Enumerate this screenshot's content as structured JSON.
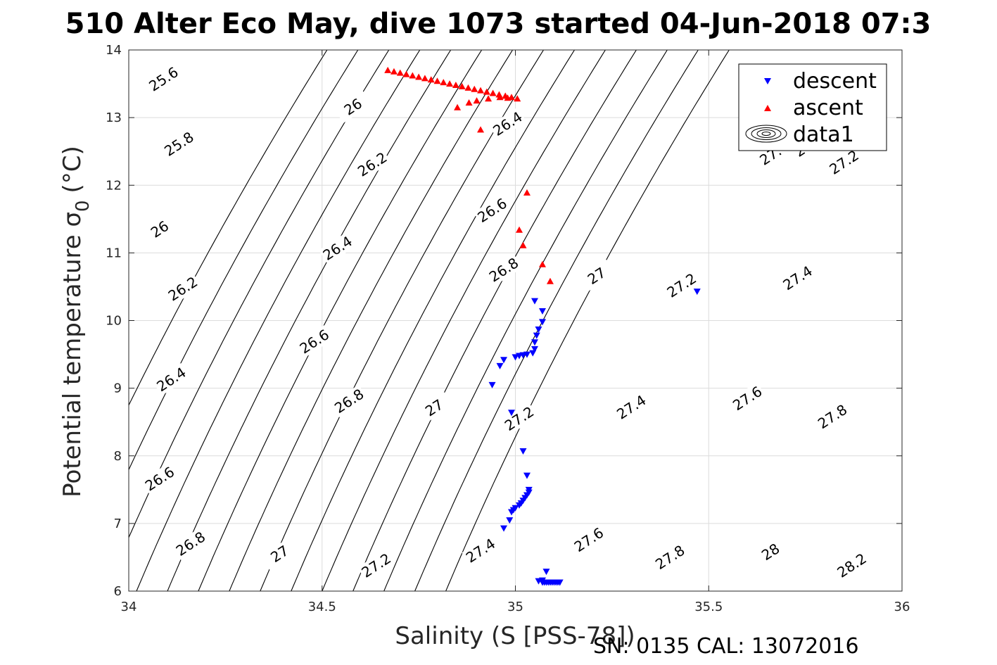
{
  "chart_data": {
    "type": "scatter",
    "title": "510 Alter Eco May, dive 1073 started 04-Jun-2018 07:3",
    "xlabel": "Salinity (S [PSS-78])",
    "ylabel": "Potential temperature σ 0 (°C)",
    "ylabel_main": "Potential temperature σ",
    "ylabel_sub": "0",
    "ylabel_unit": "(°C)",
    "xlim": [
      34,
      36
    ],
    "ylim": [
      6,
      14
    ],
    "x_ticks": [
      34,
      34.5,
      35,
      35.5,
      36
    ],
    "x_tick_labels": [
      "34",
      "34.5",
      "35",
      "35.5",
      "36"
    ],
    "y_ticks": [
      6,
      7,
      8,
      9,
      10,
      11,
      12,
      13,
      14
    ],
    "y_tick_labels": [
      "6",
      "7",
      "8",
      "9",
      "10",
      "11",
      "12",
      "13",
      "14"
    ],
    "grid": true,
    "legend_position": "top-right",
    "colors": {
      "descent": "#0000ff",
      "ascent": "#ff0000",
      "contour": "#000000",
      "grid": "#dcdcdc"
    },
    "series": [
      {
        "name": "descent",
        "marker": "triangle-down",
        "points": [
          [
            35.47,
            10.43
          ],
          [
            35.05,
            10.29
          ],
          [
            35.07,
            10.14
          ],
          [
            35.07,
            9.98
          ],
          [
            35.06,
            9.87
          ],
          [
            35.055,
            9.78
          ],
          [
            35.05,
            9.68
          ],
          [
            35.05,
            9.58
          ],
          [
            35.045,
            9.52
          ],
          [
            35.03,
            9.5
          ],
          [
            35.02,
            9.49
          ],
          [
            35.01,
            9.48
          ],
          [
            35.0,
            9.46
          ],
          [
            34.97,
            9.42
          ],
          [
            34.96,
            9.33
          ],
          [
            34.94,
            9.05
          ],
          [
            34.99,
            8.64
          ],
          [
            35.02,
            8.07
          ],
          [
            35.03,
            7.71
          ],
          [
            35.035,
            7.5
          ],
          [
            35.035,
            7.46
          ],
          [
            35.03,
            7.42
          ],
          [
            35.025,
            7.38
          ],
          [
            35.02,
            7.34
          ],
          [
            35.015,
            7.3
          ],
          [
            35.01,
            7.27
          ],
          [
            35.0,
            7.23
          ],
          [
            34.995,
            7.2
          ],
          [
            34.99,
            7.17
          ],
          [
            34.985,
            7.05
          ],
          [
            34.97,
            6.93
          ],
          [
            35.08,
            6.29
          ],
          [
            35.07,
            6.16
          ],
          [
            35.06,
            6.15
          ],
          [
            35.07,
            6.13
          ],
          [
            35.075,
            6.13
          ],
          [
            35.08,
            6.13
          ],
          [
            35.085,
            6.13
          ],
          [
            35.09,
            6.13
          ],
          [
            35.095,
            6.13
          ],
          [
            35.1,
            6.13
          ],
          [
            35.105,
            6.13
          ],
          [
            35.11,
            6.13
          ],
          [
            35.115,
            6.13
          ]
        ]
      },
      {
        "name": "ascent",
        "marker": "triangle-up",
        "points": [
          [
            34.67,
            13.7
          ],
          [
            34.686,
            13.68
          ],
          [
            34.702,
            13.66
          ],
          [
            34.718,
            13.64
          ],
          [
            34.734,
            13.62
          ],
          [
            34.75,
            13.6
          ],
          [
            34.766,
            13.58
          ],
          [
            34.782,
            13.56
          ],
          [
            34.798,
            13.54
          ],
          [
            34.814,
            13.52
          ],
          [
            34.83,
            13.5
          ],
          [
            34.846,
            13.48
          ],
          [
            34.862,
            13.46
          ],
          [
            34.878,
            13.44
          ],
          [
            34.894,
            13.42
          ],
          [
            34.91,
            13.4
          ],
          [
            34.926,
            13.38
          ],
          [
            34.942,
            13.36
          ],
          [
            34.958,
            13.34
          ],
          [
            34.974,
            13.32
          ],
          [
            34.99,
            13.3
          ],
          [
            35.005,
            13.28
          ],
          [
            34.85,
            13.15
          ],
          [
            34.88,
            13.22
          ],
          [
            34.9,
            13.25
          ],
          [
            34.93,
            13.28
          ],
          [
            34.96,
            13.3
          ],
          [
            34.98,
            13.29
          ],
          [
            34.91,
            12.82
          ],
          [
            35.03,
            11.89
          ],
          [
            35.01,
            11.34
          ],
          [
            35.02,
            11.11
          ],
          [
            35.07,
            10.83
          ],
          [
            35.09,
            10.58
          ]
        ]
      }
    ],
    "contour_series_name": "data1",
    "contours": [
      {
        "label": "25.6",
        "base": 33.78
      },
      {
        "label": "25.8",
        "base": 33.86
      },
      {
        "label": "26",
        "base": 33.94
      },
      {
        "label": "26.2",
        "base": 34.02
      },
      {
        "label": "26.4",
        "base": 34.1
      },
      {
        "label": "26.6",
        "base": 34.18
      },
      {
        "label": "26.8",
        "base": 34.26
      },
      {
        "label": "27",
        "base": 34.34
      },
      {
        "label": "27.2",
        "base": 34.42
      },
      {
        "label": "27.4",
        "base": 34.5
      },
      {
        "label": "27.6",
        "base": 34.58
      },
      {
        "label": "27.8",
        "base": 34.66
      },
      {
        "label": "28",
        "base": 34.74
      },
      {
        "label": "28.2",
        "base": 34.82
      }
    ],
    "contour_labels": [
      {
        "text": "25.6",
        "at": [
          34.09,
          13.57
        ]
      },
      {
        "text": "26",
        "at": [
          34.58,
          13.16
        ]
      },
      {
        "text": "26.4",
        "at": [
          34.98,
          12.91
        ]
      },
      {
        "text": "26.6",
        "at": [
          35.73,
          13.39
        ]
      },
      {
        "text": "25.8",
        "at": [
          34.13,
          12.61
        ]
      },
      {
        "text": "26.2",
        "at": [
          34.63,
          12.31
        ]
      },
      {
        "text": "26.8",
        "at": [
          35.76,
          12.6
        ]
      },
      {
        "text": "27.2",
        "at": [
          35.85,
          12.34
        ]
      },
      {
        "text": "27.",
        "at": [
          35.66,
          12.44
        ]
      },
      {
        "text": "26",
        "at": [
          34.08,
          11.35
        ]
      },
      {
        "text": "26.6",
        "at": [
          34.94,
          11.63
        ]
      },
      {
        "text": "26.4",
        "at": [
          34.54,
          11.07
        ]
      },
      {
        "text": "26.8",
        "at": [
          34.97,
          10.75
        ]
      },
      {
        "text": "27",
        "at": [
          35.21,
          10.66
        ]
      },
      {
        "text": "27.2",
        "at": [
          35.43,
          10.52
        ]
      },
      {
        "text": "27.4",
        "at": [
          35.73,
          10.63
        ]
      },
      {
        "text": "26.2",
        "at": [
          34.14,
          10.47
        ]
      },
      {
        "text": "26.6",
        "at": [
          34.48,
          9.69
        ]
      },
      {
        "text": "26.4",
        "at": [
          34.11,
          9.13
        ]
      },
      {
        "text": "26.8",
        "at": [
          34.57,
          8.81
        ]
      },
      {
        "text": "27",
        "at": [
          34.79,
          8.71
        ]
      },
      {
        "text": "27.2",
        "at": [
          35.01,
          8.55
        ]
      },
      {
        "text": "27.4",
        "at": [
          35.3,
          8.72
        ]
      },
      {
        "text": "27.6",
        "at": [
          35.6,
          8.85
        ]
      },
      {
        "text": "27.8",
        "at": [
          35.82,
          8.58
        ]
      },
      {
        "text": "26.6",
        "at": [
          34.08,
          7.66
        ]
      },
      {
        "text": "26.8",
        "at": [
          34.16,
          6.7
        ]
      },
      {
        "text": "27",
        "at": [
          34.39,
          6.55
        ]
      },
      {
        "text": "27.2",
        "at": [
          34.64,
          6.38
        ]
      },
      {
        "text": "27.4",
        "at": [
          34.91,
          6.6
        ]
      },
      {
        "text": "27.6",
        "at": [
          35.19,
          6.76
        ]
      },
      {
        "text": "27.8",
        "at": [
          35.4,
          6.5
        ]
      },
      {
        "text": "28",
        "at": [
          35.66,
          6.58
        ]
      },
      {
        "text": "28.2",
        "at": [
          35.87,
          6.38
        ]
      }
    ],
    "footer": "SN: 0135  CAL: 13072016"
  }
}
